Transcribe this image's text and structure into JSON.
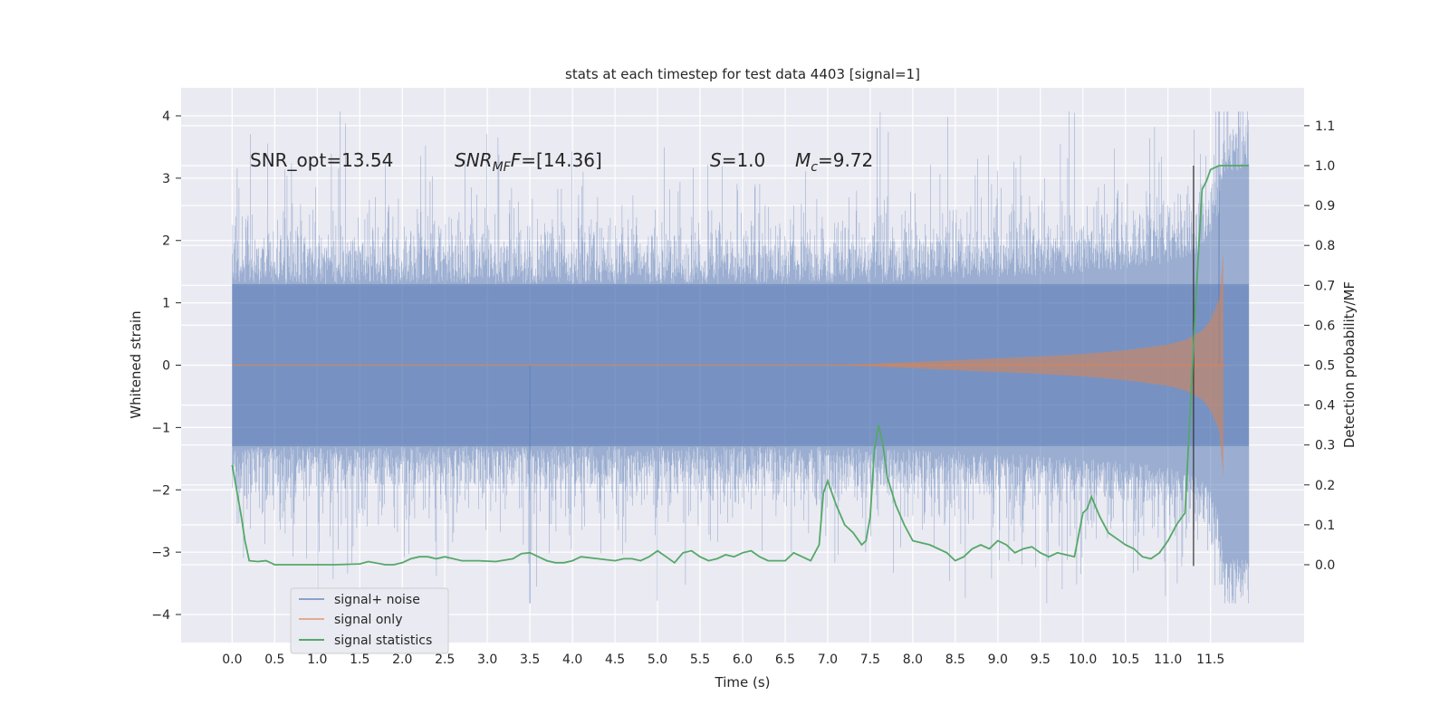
{
  "chart_data": {
    "type": "line",
    "title": "stats at each timestep for test data 4403 [signal=1]",
    "xlabel": "Time (s)",
    "ylabel": "Whitened strain",
    "y2label": "Detection probability/MF",
    "xlim": [
      -0.6,
      12.6
    ],
    "ylim": [
      -4.45,
      4.45
    ],
    "y2lim": [
      -0.195,
      1.195
    ],
    "xticks": [
      0.0,
      0.5,
      1.0,
      1.5,
      2.0,
      2.5,
      3.0,
      3.5,
      4.0,
      4.5,
      5.0,
      5.5,
      6.0,
      6.5,
      7.0,
      7.5,
      8.0,
      8.5,
      9.0,
      9.5,
      10.0,
      10.5,
      11.0,
      11.5
    ],
    "xtick_labels": [
      "0.0",
      "0.5",
      "1.0",
      "1.5",
      "2.0",
      "2.5",
      "3.0",
      "3.5",
      "4.0",
      "4.5",
      "5.0",
      "5.5",
      "6.0",
      "6.5",
      "7.0",
      "7.5",
      "8.0",
      "8.5",
      "9.0",
      "9.5",
      "10.0",
      "10.5",
      "11.0",
      "11.5"
    ],
    "yticks": [
      -4,
      -3,
      -2,
      -1,
      0,
      1,
      2,
      3,
      4
    ],
    "ytick_labels": [
      "−4",
      "−3",
      "−2",
      "−1",
      "0",
      "1",
      "2",
      "3",
      "4"
    ],
    "y2ticks": [
      0.0,
      0.1,
      0.2,
      0.3,
      0.4,
      0.5,
      0.6,
      0.7,
      0.8,
      0.9,
      1.0,
      1.1
    ],
    "y2tick_labels": [
      "0.0",
      "0.1",
      "0.2",
      "0.3",
      "0.4",
      "0.5",
      "0.6",
      "0.7",
      "0.8",
      "0.9",
      "1.0",
      "1.1"
    ],
    "grid": true,
    "legend_position": "lower-left",
    "annotations": {
      "snr_opt": "SNR_opt=13.54",
      "snr_mf_main": "SNR",
      "snr_mf_sub": "MF",
      "snr_mf_value": "=[14.36]",
      "s_main": "S",
      "s_value": "=1.0",
      "mc_main": "M",
      "mc_sub": "c",
      "mc_value": "=9.72"
    },
    "vline_x": 11.3,
    "vline_y2_range": [
      -0.003,
      1.0
    ],
    "series": [
      {
        "name": "signal+ noise",
        "color": "#4c72b0",
        "x_range": [
          0.0,
          11.95
        ],
        "typical_band": [
          -1.3,
          1.3
        ],
        "extremes_max": 4.07,
        "extremes_min": -3.82
      },
      {
        "name": "signal only",
        "color": "#dd8452",
        "x_range": [
          0.0,
          11.68
        ],
        "envelope_x": [
          0.0,
          7.0,
          7.5,
          8.0,
          8.5,
          9.0,
          9.5,
          10.0,
          10.5,
          11.0,
          11.2,
          11.4,
          11.5,
          11.6,
          11.65
        ],
        "envelope_amp": [
          0.0,
          0.0,
          0.02,
          0.05,
          0.08,
          0.11,
          0.14,
          0.18,
          0.24,
          0.33,
          0.4,
          0.55,
          0.72,
          1.05,
          1.8
        ]
      },
      {
        "name": "signal statistics",
        "color": "#55a868",
        "x": [
          0.0,
          0.1,
          0.15,
          0.2,
          0.3,
          0.4,
          0.5,
          0.7,
          0.9,
          1.2,
          1.5,
          1.6,
          1.8,
          1.9,
          2.0,
          2.1,
          2.2,
          2.3,
          2.4,
          2.5,
          2.7,
          2.9,
          3.1,
          3.3,
          3.4,
          3.5,
          3.6,
          3.7,
          3.8,
          3.9,
          4.0,
          4.1,
          4.3,
          4.5,
          4.6,
          4.7,
          4.8,
          4.9,
          5.0,
          5.1,
          5.2,
          5.3,
          5.4,
          5.5,
          5.6,
          5.7,
          5.8,
          5.9,
          6.0,
          6.1,
          6.2,
          6.3,
          6.5,
          6.6,
          6.7,
          6.8,
          6.9,
          6.95,
          7.0,
          7.1,
          7.2,
          7.3,
          7.4,
          7.45,
          7.5,
          7.55,
          7.6,
          7.65,
          7.7,
          7.8,
          7.9,
          8.0,
          8.2,
          8.4,
          8.5,
          8.6,
          8.7,
          8.8,
          8.9,
          9.0,
          9.1,
          9.2,
          9.3,
          9.4,
          9.5,
          9.6,
          9.7,
          9.8,
          9.9,
          10.0,
          10.05,
          10.1,
          10.2,
          10.3,
          10.4,
          10.5,
          10.6,
          10.7,
          10.8,
          10.9,
          11.0,
          11.1,
          11.2,
          11.3,
          11.35,
          11.4,
          11.45,
          11.5,
          11.6,
          11.7,
          11.8,
          11.9,
          11.95
        ],
        "y": [
          0.25,
          0.13,
          0.06,
          0.01,
          0.008,
          0.01,
          0.0,
          0.0,
          0.0,
          0.0,
          0.002,
          0.008,
          0.0,
          0.0,
          0.005,
          0.015,
          0.02,
          0.02,
          0.015,
          0.02,
          0.01,
          0.01,
          0.008,
          0.015,
          0.028,
          0.03,
          0.02,
          0.01,
          0.005,
          0.005,
          0.01,
          0.02,
          0.015,
          0.01,
          0.015,
          0.015,
          0.01,
          0.02,
          0.035,
          0.02,
          0.005,
          0.03,
          0.035,
          0.02,
          0.01,
          0.015,
          0.025,
          0.02,
          0.03,
          0.035,
          0.02,
          0.01,
          0.01,
          0.03,
          0.02,
          0.01,
          0.05,
          0.18,
          0.21,
          0.15,
          0.1,
          0.08,
          0.05,
          0.06,
          0.12,
          0.29,
          0.35,
          0.3,
          0.22,
          0.15,
          0.1,
          0.06,
          0.05,
          0.03,
          0.01,
          0.02,
          0.04,
          0.05,
          0.04,
          0.06,
          0.05,
          0.03,
          0.04,
          0.045,
          0.03,
          0.02,
          0.03,
          0.025,
          0.02,
          0.13,
          0.14,
          0.17,
          0.12,
          0.08,
          0.065,
          0.05,
          0.04,
          0.02,
          0.015,
          0.03,
          0.06,
          0.1,
          0.13,
          0.55,
          0.75,
          0.94,
          0.96,
          0.99,
          1.0,
          1.0,
          1.0,
          1.0,
          1.0
        ]
      }
    ]
  }
}
